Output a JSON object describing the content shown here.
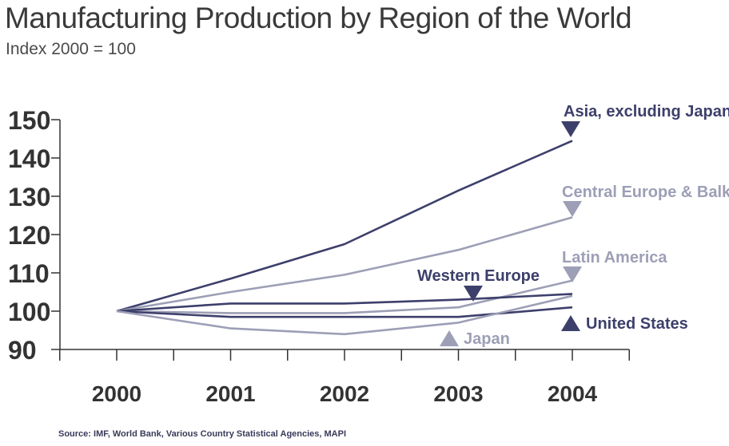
{
  "chart_data": {
    "type": "line",
    "title": "Manufacturing Production by Region of the World",
    "subtitle": "Index 2000 = 100",
    "source": "Source: IMF, World Bank, Various Country Statistical Agencies, MAPI",
    "x": [
      "2000",
      "2001",
      "2002",
      "2003",
      "2004"
    ],
    "y_ticks": [
      90,
      100,
      110,
      120,
      130,
      140,
      150
    ],
    "ylim": [
      90,
      150
    ],
    "grid": false,
    "series": [
      {
        "name": "Asia, excluding Japan",
        "values": [
          100,
          108.5,
          117.5,
          131.5,
          144.5
        ],
        "color": "#3d3f6b",
        "marker": "down",
        "label_align": "start"
      },
      {
        "name": "Central Europe & Balkans",
        "values": [
          100,
          105,
          109.5,
          116,
          124.5
        ],
        "color": "#9d9fb6",
        "marker": "down",
        "label_align": "start"
      },
      {
        "name": "Latin America",
        "values": [
          100,
          99.5,
          99.5,
          101,
          108
        ],
        "color": "#9d9fb6",
        "marker": "down",
        "label_align": "start"
      },
      {
        "name": "Western Europe",
        "values": [
          100,
          102,
          102,
          103,
          104.5
        ],
        "color": "#3d3f6b",
        "marker": "down",
        "label_align": "end"
      },
      {
        "name": "United States",
        "values": [
          100,
          98.5,
          98.5,
          98.5,
          101
        ],
        "color": "#3d3f6b",
        "marker": "up",
        "label_align": "start"
      },
      {
        "name": "Japan",
        "values": [
          100,
          95.5,
          94,
          97,
          104
        ],
        "color": "#9d9fb6",
        "marker": "up",
        "label_align": "start"
      }
    ]
  }
}
